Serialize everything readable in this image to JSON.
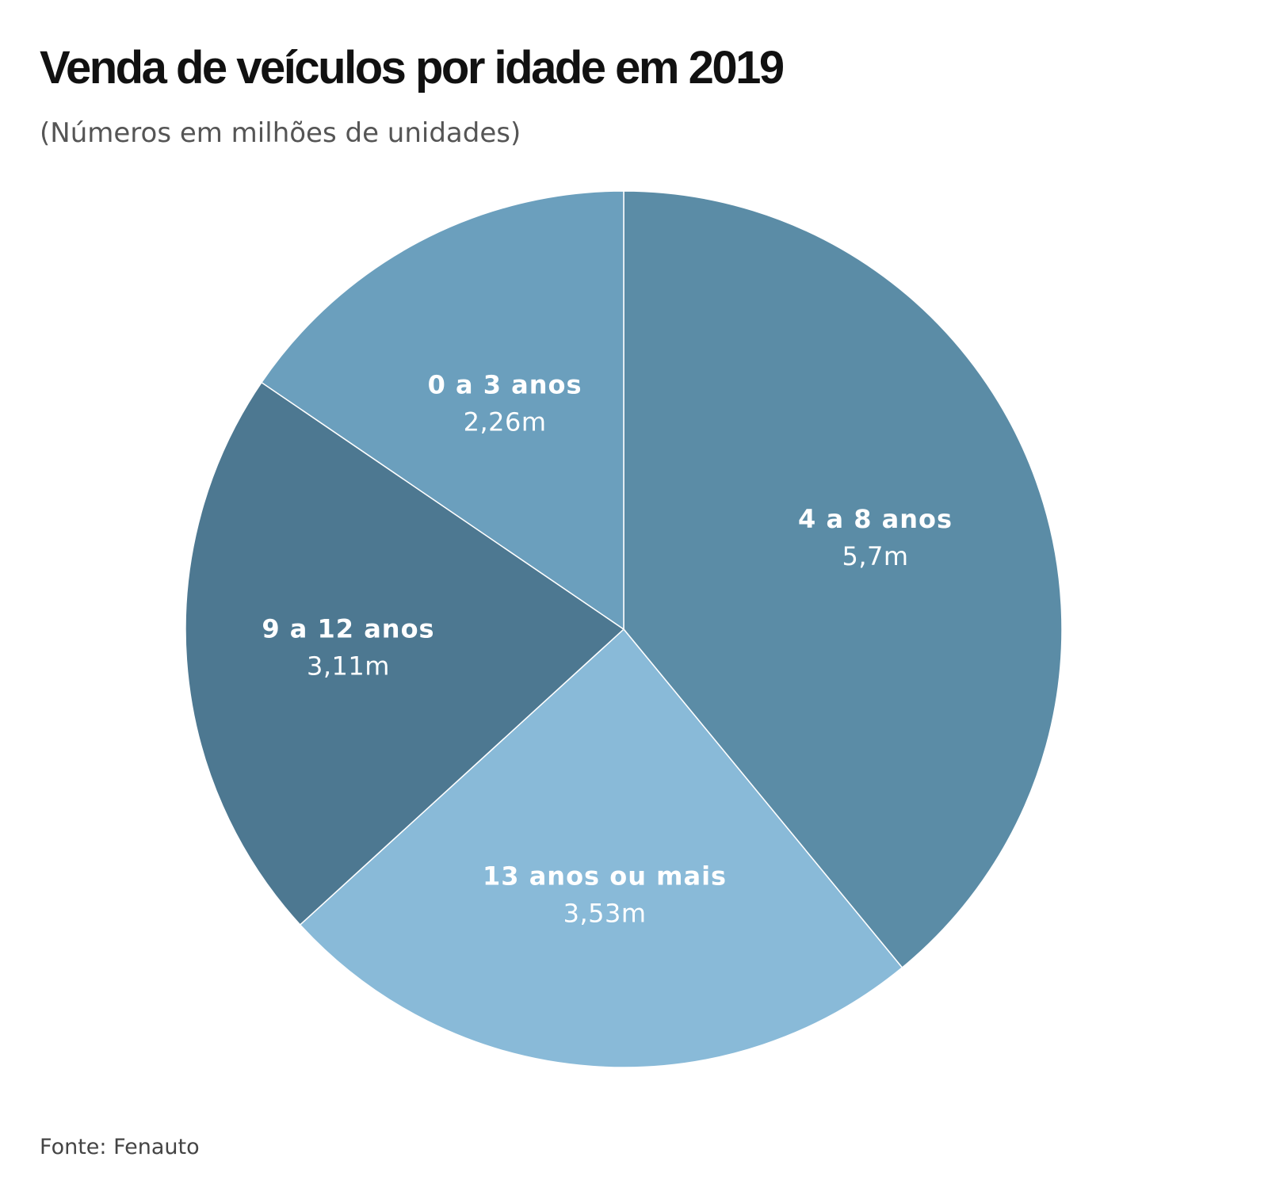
{
  "chart_data": {
    "type": "pie",
    "title": "Venda de veículos por idade em 2019",
    "subtitle": "(Números em milhões de unidades)",
    "source": "Fonte: Fenauto",
    "start": "top",
    "direction": "clockwise",
    "slices": [
      {
        "label": "4 a 8 anos",
        "value": 5.7,
        "value_label": "5,7m",
        "color": "#5b8ca6"
      },
      {
        "label": "13 anos ou mais",
        "value": 3.53,
        "value_label": "3,53m",
        "color": "#89bad8"
      },
      {
        "label": "9 a 12 anos",
        "value": 3.11,
        "value_label": "3,11m",
        "color": "#4d7891"
      },
      {
        "label": "0 a 3 anos",
        "value": 2.26,
        "value_label": "2,26m",
        "color": "#6b9fbd"
      }
    ]
  }
}
